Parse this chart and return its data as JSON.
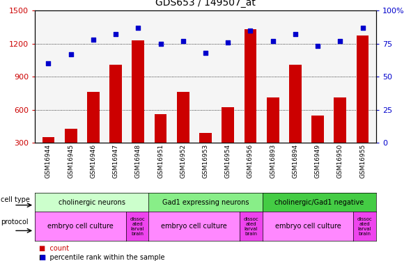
{
  "title": "GDS653 / 149507_at",
  "samples": [
    "GSM16944",
    "GSM16945",
    "GSM16946",
    "GSM16947",
    "GSM16948",
    "GSM16951",
    "GSM16952",
    "GSM16953",
    "GSM16954",
    "GSM16956",
    "GSM16893",
    "GSM16894",
    "GSM16949",
    "GSM16950",
    "GSM16955"
  ],
  "counts": [
    350,
    430,
    760,
    1010,
    1230,
    560,
    760,
    390,
    620,
    1330,
    710,
    1010,
    550,
    710,
    1270
  ],
  "percentiles": [
    60,
    67,
    78,
    82,
    87,
    75,
    77,
    68,
    76,
    85,
    77,
    82,
    73,
    77,
    87
  ],
  "ylim_left": [
    300,
    1500
  ],
  "ylim_right": [
    0,
    100
  ],
  "yticks_left": [
    300,
    600,
    900,
    1200,
    1500
  ],
  "yticks_right": [
    0,
    25,
    50,
    75,
    100
  ],
  "bar_color": "#cc0000",
  "dot_color": "#0000cc",
  "bg_color": "#ffffff",
  "cell_type_groups": [
    {
      "label": "cholinergic neurons",
      "start": 0,
      "end": 4,
      "color": "#ccffcc"
    },
    {
      "label": "Gad1 expressing neurons",
      "start": 5,
      "end": 9,
      "color": "#88ee88"
    },
    {
      "label": "cholinergic/Gad1 negative",
      "start": 10,
      "end": 14,
      "color": "#44cc44"
    }
  ],
  "protocol_groups": [
    {
      "label": "embryo cell culture",
      "start": 0,
      "end": 3,
      "color": "#ff88ff"
    },
    {
      "label": "dissoc\nated\nlarval\nbrain",
      "start": 4,
      "end": 4,
      "color": "#ee44ee"
    },
    {
      "label": "embryo cell culture",
      "start": 5,
      "end": 8,
      "color": "#ff88ff"
    },
    {
      "label": "dissoc\nated\nlarval\nbrain",
      "start": 9,
      "end": 9,
      "color": "#ee44ee"
    },
    {
      "label": "embryo cell culture",
      "start": 10,
      "end": 13,
      "color": "#ff88ff"
    },
    {
      "label": "dissoc\nated\nlarval\nbrain",
      "start": 14,
      "end": 14,
      "color": "#ee44ee"
    }
  ],
  "axis_color_left": "#cc0000",
  "axis_color_right": "#0000cc",
  "tick_fontsize": 7,
  "sample_label_fontsize": 6.5,
  "title_fontsize": 10
}
